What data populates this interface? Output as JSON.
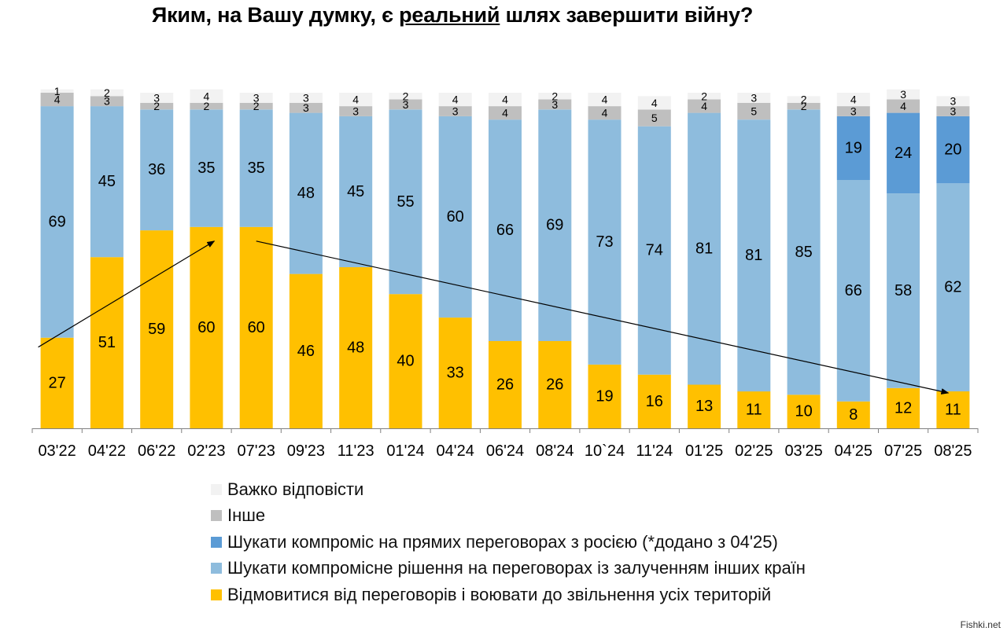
{
  "title": {
    "before": "Яким, на Вашу думку, є ",
    "highlight": "реальний",
    "after": " шлях завершити війну?"
  },
  "watermark": "Fishki.net",
  "colors": {
    "fight": "#FFC000",
    "compromise_others": "#8EBCDD",
    "direct_talks": "#5B9BD5",
    "other": "#BFBFBF",
    "hard_to_say": "#F2F2F2",
    "arrow": "#000000",
    "axis": "#808080"
  },
  "chart_data": {
    "type": "bar",
    "stacked": true,
    "categories": [
      "03'22",
      "04'22",
      "06'22",
      "02'23",
      "07'23",
      "09'23",
      "11'23",
      "01'24",
      "04'24",
      "06'24",
      "08'24",
      "10`24",
      "11'24",
      "01'25",
      "02'25",
      "03'25",
      "04'25",
      "07'25",
      "08'25"
    ],
    "ylim": [
      0,
      100
    ],
    "grid": false,
    "legend_position": "bottom",
    "series": [
      {
        "key": "fight",
        "name": "Відмовитися від переговорів і воювати до звільнення усіх територій",
        "values": [
          27,
          51,
          59,
          60,
          60,
          46,
          48,
          40,
          33,
          26,
          26,
          19,
          16,
          13,
          11,
          10,
          8,
          12,
          11
        ]
      },
      {
        "key": "compromise_others",
        "name": "Шукати компромісне рішення на переговорах із залученням інших країн",
        "values": [
          69,
          45,
          36,
          35,
          35,
          48,
          45,
          55,
          60,
          66,
          69,
          73,
          74,
          81,
          81,
          85,
          66,
          58,
          62
        ]
      },
      {
        "key": "direct_talks",
        "name": "Шукати компроміс на прямих переговорах з росією (*додано з 04'25)",
        "values": [
          null,
          null,
          null,
          null,
          null,
          null,
          null,
          null,
          null,
          null,
          null,
          null,
          null,
          null,
          null,
          null,
          19,
          24,
          20
        ]
      },
      {
        "key": "other",
        "name": "Інше",
        "values": [
          4,
          3,
          2,
          2,
          2,
          3,
          3,
          3,
          3,
          4,
          3,
          4,
          5,
          4,
          5,
          2,
          3,
          4,
          3
        ]
      },
      {
        "key": "hard_to_say",
        "name": "Важко відповісти",
        "values": [
          1,
          2,
          3,
          4,
          3,
          3,
          4,
          2,
          4,
          4,
          2,
          4,
          4,
          2,
          3,
          2,
          4,
          3,
          3
        ]
      }
    ],
    "legend_order": [
      "hard_to_say",
      "other",
      "direct_talks",
      "compromise_others",
      "fight"
    ],
    "annotations": [
      {
        "type": "arrow",
        "from": {
          "category": "03'22",
          "value": 27
        },
        "to": {
          "category": "02'23",
          "value": 60
        }
      },
      {
        "type": "arrow",
        "from": {
          "category": "07'23",
          "value": 60
        },
        "to": {
          "category": "08'25",
          "value": 11
        }
      }
    ]
  }
}
